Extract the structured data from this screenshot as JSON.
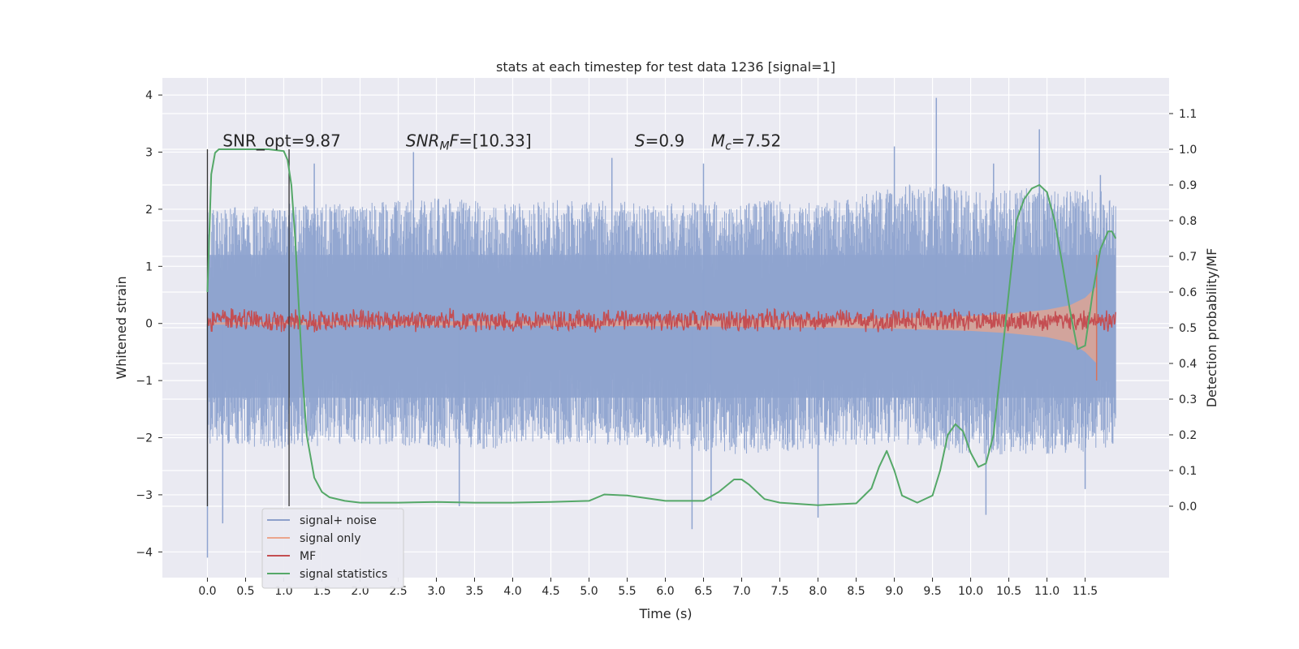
{
  "chart_data": {
    "type": "line",
    "title": "stats at each timestep for test data 1236 [signal=1]",
    "xlabel": "Time (s)",
    "ylabel_left": "Whitened strain",
    "ylabel_right": "Detection probability/MF",
    "xlim": [
      -0.59,
      12.6
    ],
    "ylim_left": [
      -4.45,
      4.3
    ],
    "ylim_right": [
      -0.2,
      1.2
    ],
    "x_ticks": [
      0.0,
      0.5,
      1.0,
      1.5,
      2.0,
      2.5,
      3.0,
      3.5,
      4.0,
      4.5,
      5.0,
      5.5,
      6.0,
      6.5,
      7.0,
      7.5,
      8.0,
      8.5,
      9.0,
      9.5,
      10.0,
      10.5,
      11.0,
      11.5
    ],
    "x_tick_labels": [
      "0.0",
      "0.5",
      "1.0",
      "1.5",
      "2.0",
      "2.5",
      "3.0",
      "3.5",
      "4.0",
      "4.5",
      "5.0",
      "5.5",
      "6.0",
      "6.5",
      "7.0",
      "7.5",
      "8.0",
      "8.5",
      "9.0",
      "9.5",
      "10.0",
      "10.5",
      "11.0",
      "11.5"
    ],
    "y_left_ticks": [
      -4,
      -3,
      -2,
      -1,
      0,
      1,
      2,
      3,
      4
    ],
    "y_left_tick_labels": [
      "−4",
      "−3",
      "−2",
      "−1",
      "0",
      "1",
      "2",
      "3",
      "4"
    ],
    "y_right_ticks": [
      0.0,
      0.1,
      0.2,
      0.3,
      0.4,
      0.5,
      0.6,
      0.7,
      0.8,
      0.9,
      1.0,
      1.1
    ],
    "y_right_tick_labels": [
      "0.0",
      "0.1",
      "0.2",
      "0.3",
      "0.4",
      "0.5",
      "0.6",
      "0.7",
      "0.8",
      "0.9",
      "1.0",
      "1.1"
    ],
    "grid": true,
    "legend_position": "lower-left",
    "noise_envelope": {
      "x": [
        0.0,
        1.0,
        2.0,
        3.0,
        4.0,
        5.0,
        6.0,
        7.0,
        8.0,
        9.0,
        9.5,
        10.0,
        11.0,
        11.9
      ],
      "upper": [
        2.0,
        2.1,
        2.1,
        2.2,
        2.1,
        2.2,
        2.1,
        2.2,
        2.1,
        2.4,
        2.5,
        2.3,
        2.4,
        2.3
      ],
      "lower": [
        -2.1,
        -2.2,
        -2.1,
        -2.2,
        -2.2,
        -2.1,
        -2.2,
        -2.3,
        -2.2,
        -2.1,
        -2.2,
        -2.3,
        -2.3,
        -2.2
      ],
      "spikes_up": [
        [
          1.4,
          2.8
        ],
        [
          2.7,
          3.0
        ],
        [
          5.3,
          2.9
        ],
        [
          6.5,
          2.8
        ],
        [
          9.0,
          3.1
        ],
        [
          9.55,
          3.95
        ],
        [
          10.3,
          2.8
        ],
        [
          10.9,
          3.4
        ],
        [
          11.7,
          2.6
        ]
      ],
      "spikes_down": [
        [
          0.0,
          -4.1
        ],
        [
          0.2,
          -3.5
        ],
        [
          3.3,
          -3.2
        ],
        [
          6.35,
          -3.6
        ],
        [
          6.6,
          -3.1
        ],
        [
          8.0,
          -3.4
        ],
        [
          10.2,
          -3.35
        ],
        [
          11.5,
          -2.9
        ]
      ]
    },
    "signal_envelope": {
      "x": [
        0.0,
        2.0,
        4.0,
        6.0,
        7.0,
        8.0,
        9.0,
        10.0,
        10.5,
        11.0,
        11.3,
        11.5,
        11.65
      ],
      "upper": [
        0.02,
        0.03,
        0.04,
        0.05,
        0.06,
        0.07,
        0.09,
        0.13,
        0.17,
        0.24,
        0.32,
        0.45,
        0.65
      ],
      "lower": [
        -0.02,
        -0.03,
        -0.04,
        -0.05,
        -0.06,
        -0.07,
        -0.09,
        -0.13,
        -0.17,
        -0.24,
        -0.33,
        -0.5,
        -0.7
      ],
      "chirp_end": [
        11.65,
        1.2,
        -1.0
      ]
    },
    "mf_band": {
      "x_start": 0.0,
      "x_end": 11.9,
      "center_right_axis": 0.52,
      "amplitude_right_axis": 0.035
    },
    "signal_statistics": {
      "x": [
        0.0,
        0.05,
        0.1,
        0.15,
        0.2,
        0.3,
        0.5,
        0.8,
        1.0,
        1.05,
        1.1,
        1.15,
        1.2,
        1.25,
        1.3,
        1.4,
        1.5,
        1.6,
        1.8,
        2.0,
        2.5,
        3.0,
        3.5,
        4.0,
        4.5,
        5.0,
        5.2,
        5.5,
        6.0,
        6.5,
        6.7,
        6.9,
        7.0,
        7.1,
        7.3,
        7.5,
        8.0,
        8.5,
        8.7,
        8.8,
        8.9,
        9.0,
        9.1,
        9.3,
        9.5,
        9.6,
        9.7,
        9.8,
        9.9,
        10.0,
        10.1,
        10.2,
        10.3,
        10.4,
        10.5,
        10.6,
        10.7,
        10.8,
        10.9,
        11.0,
        11.1,
        11.2,
        11.3,
        11.4,
        11.5,
        11.6,
        11.7,
        11.8,
        11.85,
        11.9
      ],
      "y": [
        0.6,
        0.93,
        0.99,
        1.0,
        1.0,
        1.0,
        1.0,
        1.0,
        0.995,
        0.97,
        0.9,
        0.75,
        0.55,
        0.35,
        0.2,
        0.08,
        0.04,
        0.025,
        0.015,
        0.01,
        0.01,
        0.012,
        0.01,
        0.01,
        0.012,
        0.015,
        0.033,
        0.03,
        0.015,
        0.015,
        0.04,
        0.075,
        0.075,
        0.06,
        0.02,
        0.01,
        0.003,
        0.008,
        0.05,
        0.11,
        0.155,
        0.1,
        0.03,
        0.01,
        0.03,
        0.1,
        0.2,
        0.23,
        0.21,
        0.15,
        0.11,
        0.12,
        0.2,
        0.4,
        0.6,
        0.8,
        0.86,
        0.89,
        0.9,
        0.88,
        0.8,
        0.68,
        0.55,
        0.44,
        0.45,
        0.6,
        0.72,
        0.77,
        0.77,
        0.75
      ]
    },
    "vertical_lines": [
      [
        0.0,
        -3.2,
        3.05
      ],
      [
        1.07,
        -3.2,
        3.05
      ]
    ],
    "annotations": [
      {
        "id": "snr-opt",
        "text": "SNR_opt=9.87",
        "x": 0.2,
        "y": 3.1
      },
      {
        "id": "snr-mf",
        "text": "=[10.33]",
        "x": 2.6,
        "y": 3.1,
        "math": "SNR",
        "math_sub": "M",
        "math_tail": "F"
      },
      {
        "id": "s",
        "text": "=0.9",
        "x": 5.6,
        "y": 3.1,
        "math": "S"
      },
      {
        "id": "mc",
        "text": "=7.52",
        "x": 6.6,
        "y": 3.1,
        "math": "M",
        "math_sub": "c"
      }
    ],
    "legend": [
      {
        "label": "signal+ noise",
        "color": "#8da0cb"
      },
      {
        "label": "signal only",
        "color": "#eba58c"
      },
      {
        "label": "MF",
        "color": "#c44e52"
      },
      {
        "label": "signal statistics",
        "color": "#55a868"
      }
    ]
  },
  "colors": {
    "plot_bg": "#eaeaf2",
    "grid": "#ffffff",
    "noise": "#8ea3cf",
    "signal": "#e8a48b",
    "mf": "#c44e52",
    "stat": "#55a868",
    "vline": "#333333"
  }
}
